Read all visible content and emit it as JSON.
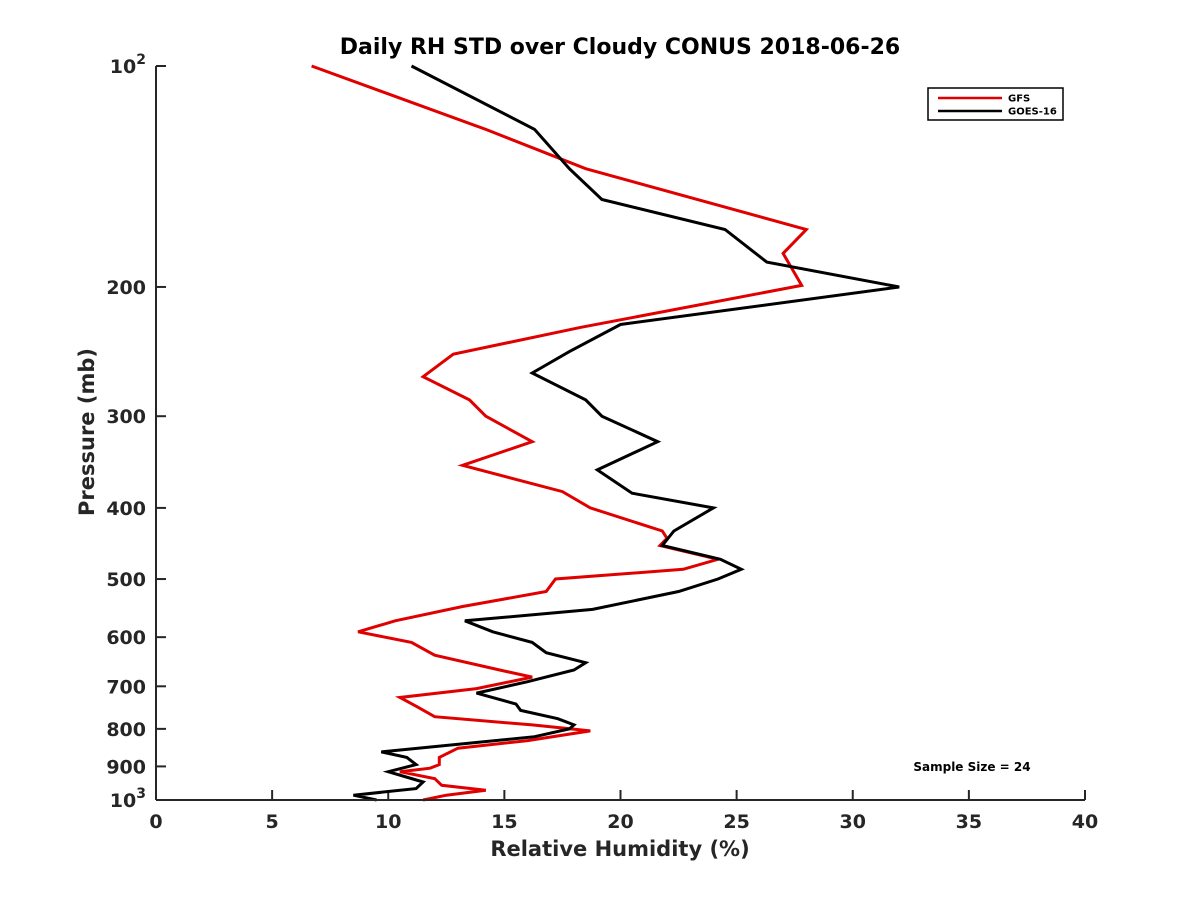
{
  "chart_data": {
    "type": "line",
    "title": "Daily RH STD over Cloudy CONUS 2018-06-26",
    "xlabel": "Relative Humidity (%)",
    "ylabel": "Pressure (mb)",
    "xlim": [
      0,
      40
    ],
    "ylim": [
      100,
      1000
    ],
    "yscale": "log",
    "y_reversed": true,
    "grid": false,
    "legend_position": "top-right",
    "x_ticks": [
      "0",
      "5",
      "10",
      "15",
      "20",
      "25",
      "30",
      "35",
      "40"
    ],
    "y_ticks": [
      {
        "value": 100,
        "base": "10",
        "exp": "2"
      },
      {
        "value": 200,
        "label": "200"
      },
      {
        "value": 300,
        "label": "300"
      },
      {
        "value": 400,
        "label": "400"
      },
      {
        "value": 500,
        "label": "500"
      },
      {
        "value": 600,
        "label": "600"
      },
      {
        "value": 700,
        "label": "700"
      },
      {
        "value": 800,
        "label": "800"
      },
      {
        "value": 900,
        "label": "900"
      },
      {
        "value": 1000,
        "base": "10",
        "exp": "3"
      }
    ],
    "annotation": "Sample Size = 24",
    "series": [
      {
        "name": "GFS",
        "color": "#e00000",
        "points": [
          [
            6.7,
            100
          ],
          [
            14.2,
            122
          ],
          [
            18.5,
            138
          ],
          [
            28.0,
            167
          ],
          [
            27.0,
            180
          ],
          [
            27.8,
            199
          ],
          [
            18.3,
            227
          ],
          [
            12.8,
            247
          ],
          [
            11.5,
            265
          ],
          [
            13.5,
            285
          ],
          [
            14.2,
            300
          ],
          [
            16.2,
            325
          ],
          [
            13.2,
            350
          ],
          [
            17.5,
            380
          ],
          [
            18.7,
            400
          ],
          [
            21.8,
            430
          ],
          [
            22.0,
            440
          ],
          [
            21.7,
            450
          ],
          [
            24.2,
            470
          ],
          [
            22.7,
            485
          ],
          [
            17.2,
            500
          ],
          [
            16.8,
            520
          ],
          [
            13.2,
            545
          ],
          [
            10.3,
            570
          ],
          [
            8.7,
            590
          ],
          [
            11.0,
            610
          ],
          [
            12.0,
            635
          ],
          [
            14.8,
            665
          ],
          [
            16.2,
            680
          ],
          [
            13.8,
            705
          ],
          [
            10.5,
            725
          ],
          [
            11.2,
            745
          ],
          [
            12.0,
            770
          ],
          [
            16.2,
            790
          ],
          [
            18.7,
            805
          ],
          [
            16.0,
            830
          ],
          [
            13.0,
            850
          ],
          [
            12.2,
            875
          ],
          [
            12.2,
            895
          ],
          [
            11.8,
            905
          ],
          [
            10.5,
            915
          ],
          [
            12.0,
            935
          ],
          [
            12.3,
            955
          ],
          [
            14.2,
            970
          ],
          [
            12.5,
            985
          ],
          [
            11.5,
            1000
          ]
        ]
      },
      {
        "name": "GOES-16",
        "color": "#000000",
        "points": [
          [
            11.0,
            100
          ],
          [
            16.3,
            122
          ],
          [
            17.8,
            138
          ],
          [
            19.2,
            152
          ],
          [
            24.5,
            167
          ],
          [
            26.3,
            185
          ],
          [
            32.0,
            200
          ],
          [
            20.0,
            225
          ],
          [
            17.8,
            245
          ],
          [
            16.2,
            262
          ],
          [
            18.5,
            285
          ],
          [
            19.2,
            300
          ],
          [
            21.6,
            325
          ],
          [
            19.0,
            355
          ],
          [
            20.5,
            382
          ],
          [
            24.0,
            400
          ],
          [
            22.3,
            430
          ],
          [
            21.8,
            450
          ],
          [
            24.3,
            470
          ],
          [
            25.2,
            485
          ],
          [
            24.2,
            500
          ],
          [
            22.5,
            520
          ],
          [
            18.8,
            550
          ],
          [
            13.3,
            570
          ],
          [
            14.5,
            590
          ],
          [
            16.2,
            610
          ],
          [
            16.8,
            630
          ],
          [
            18.5,
            650
          ],
          [
            18.0,
            665
          ],
          [
            16.0,
            690
          ],
          [
            13.8,
            715
          ],
          [
            15.5,
            740
          ],
          [
            15.7,
            755
          ],
          [
            17.3,
            775
          ],
          [
            18.0,
            790
          ],
          [
            17.8,
            800
          ],
          [
            16.3,
            820
          ],
          [
            9.7,
            860
          ],
          [
            10.8,
            875
          ],
          [
            11.2,
            895
          ],
          [
            10.0,
            915
          ],
          [
            11.5,
            945
          ],
          [
            11.2,
            965
          ],
          [
            8.5,
            985
          ],
          [
            9.5,
            1000
          ]
        ]
      }
    ]
  }
}
